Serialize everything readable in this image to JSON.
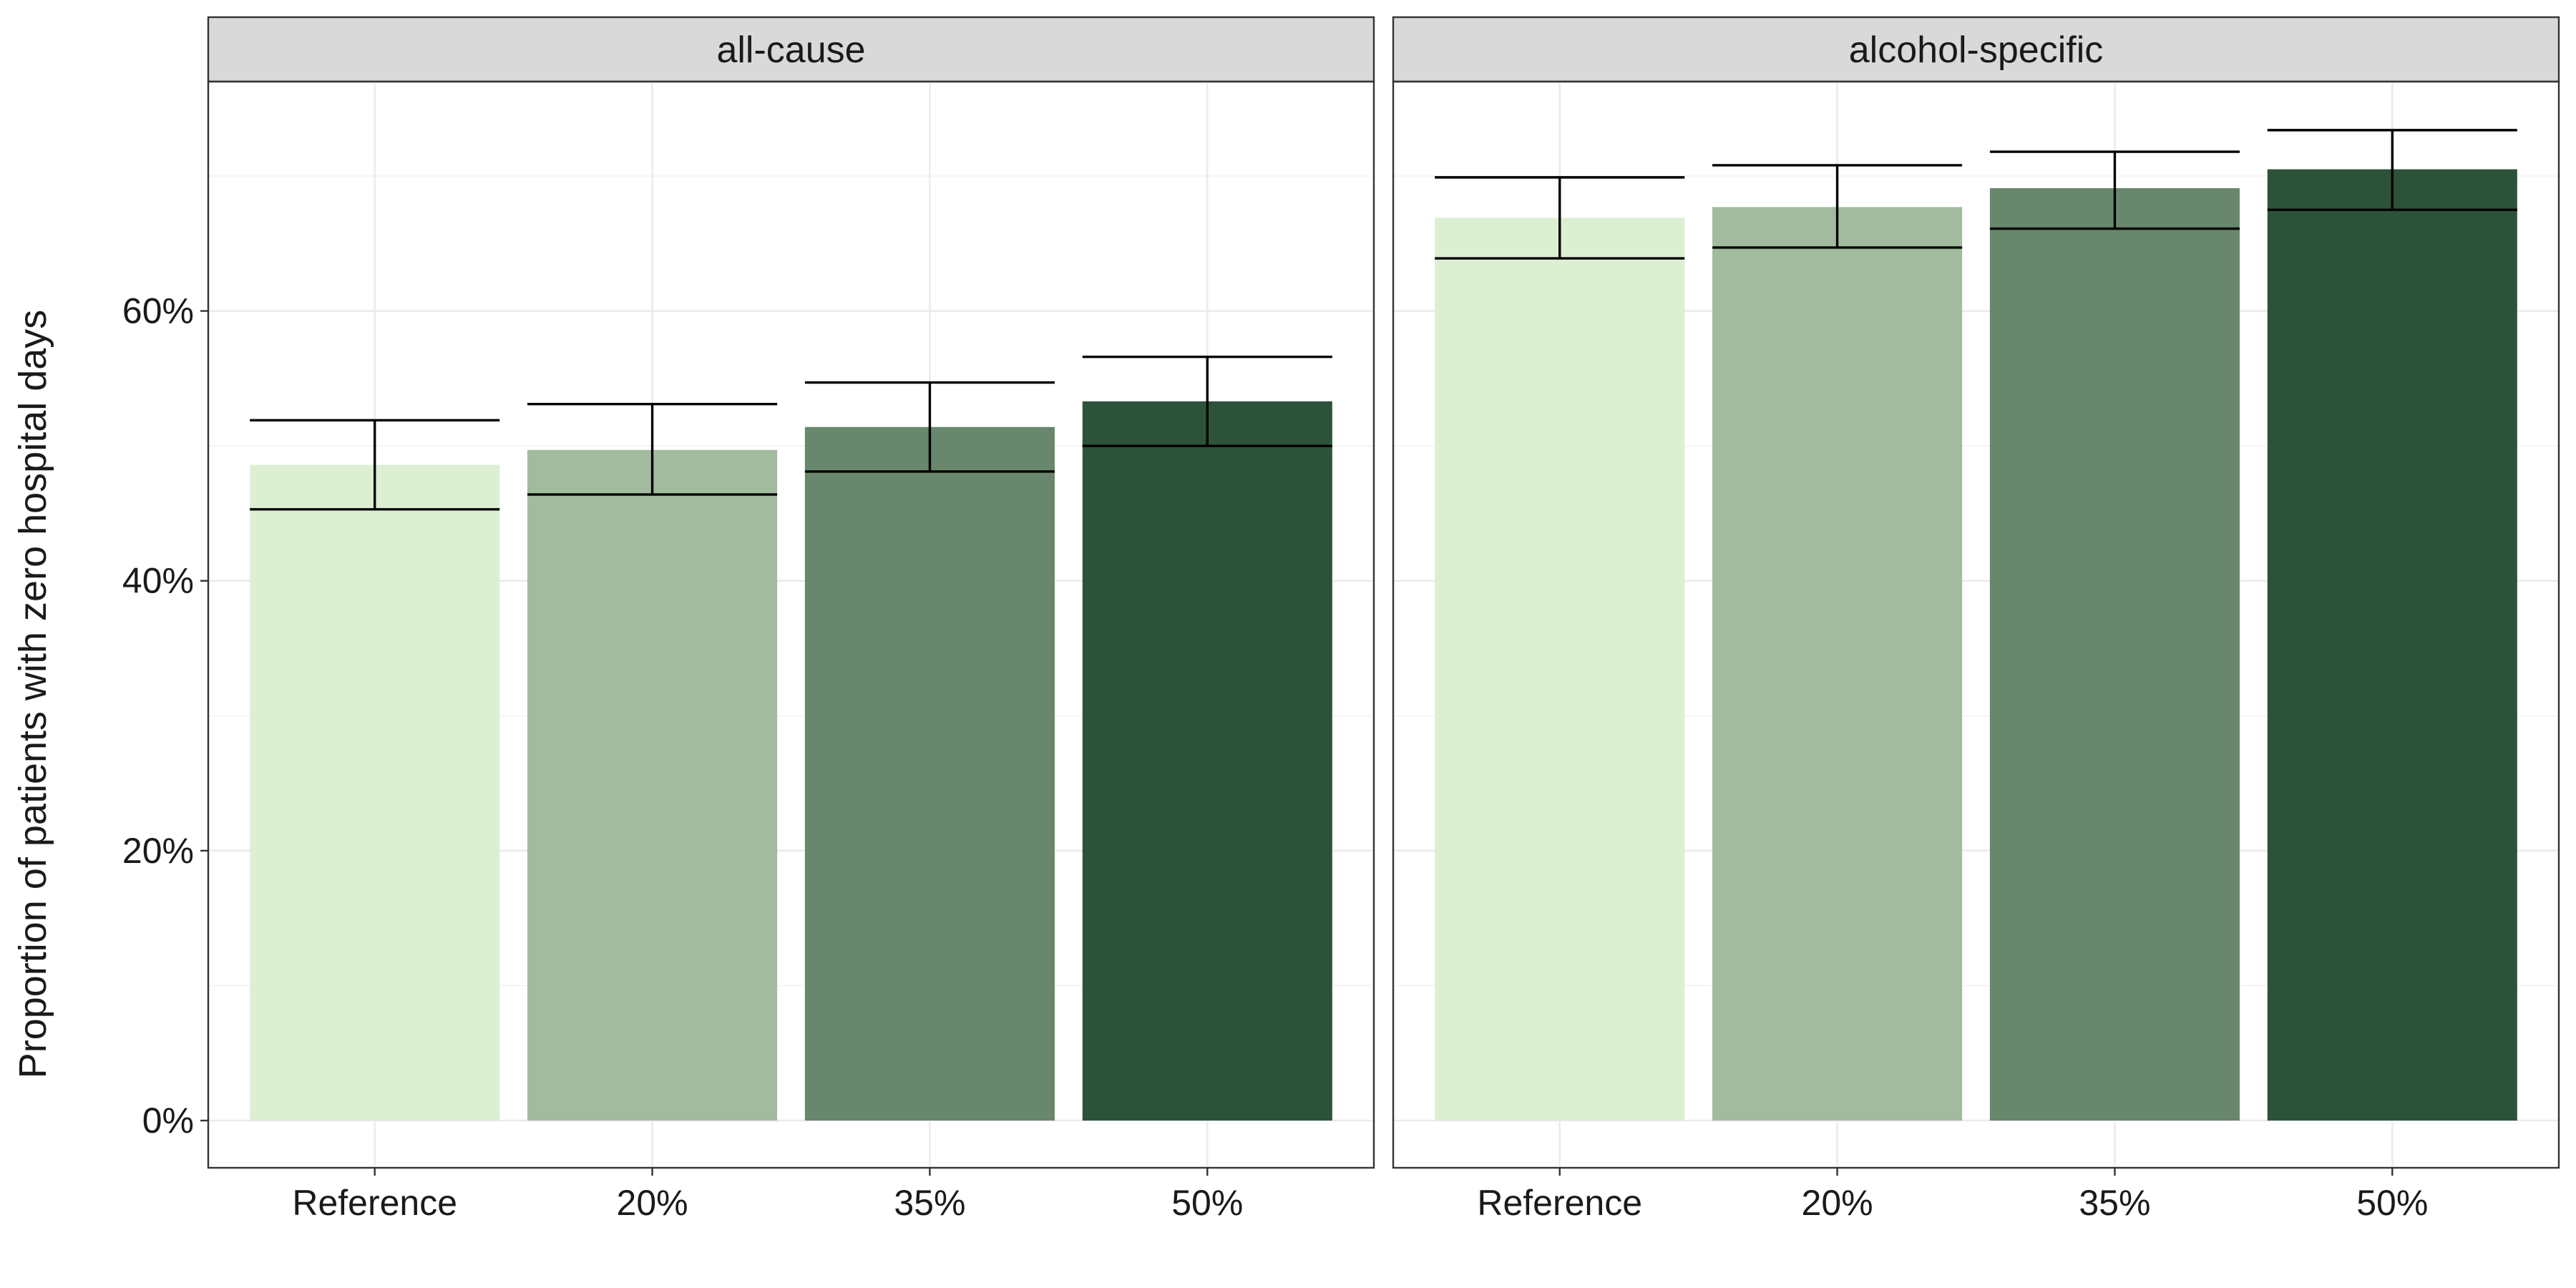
{
  "chart_data": {
    "type": "bar",
    "ylabel": "Proportion of patients with zero hospital days",
    "xlabel": "",
    "ylim": [
      -0.035,
      0.77
    ],
    "y_ticks": [
      0,
      0.2,
      0.4,
      0.6
    ],
    "y_tick_labels": [
      "0%",
      "20%",
      "40%",
      "60%"
    ],
    "grid": true,
    "legend": "none",
    "categories": [
      "Reference",
      "20%",
      "35%",
      "50%"
    ],
    "bar_colors": [
      "#ddefd3",
      "#a2bb9e",
      "#68876c",
      "#2c533a"
    ],
    "panels": [
      {
        "strip_label": "all-cause",
        "values": [
          0.486,
          0.497,
          0.514,
          0.533
        ],
        "lower": [
          0.453,
          0.464,
          0.481,
          0.5
        ],
        "upper": [
          0.519,
          0.531,
          0.547,
          0.566
        ]
      },
      {
        "strip_label": "alcohol-specific",
        "values": [
          0.669,
          0.677,
          0.691,
          0.705
        ],
        "lower": [
          0.639,
          0.647,
          0.661,
          0.675
        ],
        "upper": [
          0.699,
          0.708,
          0.718,
          0.734
        ]
      }
    ]
  }
}
